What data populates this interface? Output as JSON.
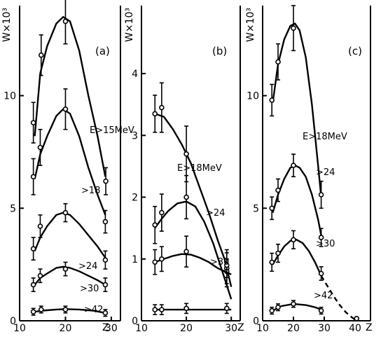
{
  "chart_data": [
    {
      "type": "line",
      "panel_label": "(a)",
      "ylabel": "W×10³",
      "xlabel": "Z",
      "xlim": [
        10,
        32
      ],
      "ylim": [
        0,
        14
      ],
      "xticks": [
        10,
        20,
        30
      ],
      "xtick_labels": [
        "10",
        "20",
        "30"
      ],
      "yticks": [
        0,
        5,
        10
      ],
      "ytick_labels": [
        "0",
        "5",
        "10"
      ],
      "series": [
        {
          "name": "E>15MeV",
          "curve": [
            [
              13.3,
              8.2
            ],
            [
              14.5,
              11.0
            ],
            [
              16,
              12.2
            ],
            [
              18,
              13.2
            ],
            [
              19.5,
              13.5
            ],
            [
              21,
              13.3
            ],
            [
              23,
              12.0
            ],
            [
              25,
              10.0
            ],
            [
              27,
              8.2
            ],
            [
              28.7,
              6.4
            ]
          ],
          "points": [
            {
              "x": 13,
              "y": 8.8,
              "err": 0.9
            },
            {
              "x": 14.7,
              "y": 11.8,
              "err": 0.9
            },
            {
              "x": 20,
              "y": 13.3,
              "err": 1.0
            },
            {
              "x": 28.8,
              "y": 6.2,
              "err": 0.6
            }
          ]
        },
        {
          "name": ">18",
          "curve": [
            [
              13.3,
              6.3
            ],
            [
              14.5,
              7.4
            ],
            [
              16,
              8.2
            ],
            [
              18,
              9.1
            ],
            [
              19.5,
              9.4
            ],
            [
              21,
              9.2
            ],
            [
              23,
              8.2
            ],
            [
              25,
              6.8
            ],
            [
              27,
              5.6
            ],
            [
              28.7,
              4.7
            ]
          ],
          "points": [
            {
              "x": 13,
              "y": 6.4,
              "err": 0.8
            },
            {
              "x": 14.5,
              "y": 7.7,
              "err": 0.8
            },
            {
              "x": 20,
              "y": 9.4,
              "err": 0.9
            },
            {
              "x": 28.7,
              "y": 4.4,
              "err": 0.5
            }
          ]
        },
        {
          "name": ">24",
          "curve": [
            [
              13.3,
              3.1
            ],
            [
              14.5,
              3.7
            ],
            [
              16,
              4.2
            ],
            [
              18,
              4.7
            ],
            [
              19.5,
              4.8
            ],
            [
              21,
              4.7
            ],
            [
              23,
              4.3
            ],
            [
              25,
              3.8
            ],
            [
              27,
              3.3
            ],
            [
              28.7,
              2.8
            ]
          ],
          "points": [
            {
              "x": 13,
              "y": 3.2,
              "err": 0.5
            },
            {
              "x": 14.5,
              "y": 4.2,
              "err": 0.5
            },
            {
              "x": 20,
              "y": 4.8,
              "err": 0.4
            },
            {
              "x": 28.7,
              "y": 2.7,
              "err": 0.4
            }
          ]
        },
        {
          "name": ">30",
          "curve": [
            [
              13.3,
              1.6
            ],
            [
              14.5,
              1.9
            ],
            [
              16,
              2.1
            ],
            [
              18,
              2.35
            ],
            [
              19.5,
              2.4
            ],
            [
              21,
              2.35
            ],
            [
              23,
              2.2
            ],
            [
              25,
              2.0
            ],
            [
              27,
              1.8
            ],
            [
              28.7,
              1.6
            ]
          ],
          "points": [
            {
              "x": 13,
              "y": 1.6,
              "err": 0.3
            },
            {
              "x": 14.5,
              "y": 2.0,
              "err": 0.3
            },
            {
              "x": 20,
              "y": 2.3,
              "err": 0.3
            },
            {
              "x": 28.7,
              "y": 1.6,
              "err": 0.3
            }
          ]
        },
        {
          "name": ">42",
          "curve": [
            [
              13.3,
              0.4
            ],
            [
              15,
              0.45
            ],
            [
              18,
              0.5
            ],
            [
              20,
              0.52
            ],
            [
              23,
              0.5
            ],
            [
              26,
              0.45
            ],
            [
              28.7,
              0.35
            ]
          ],
          "points": [
            {
              "x": 13,
              "y": 0.4,
              "err": 0.15
            },
            {
              "x": 14.7,
              "y": 0.5,
              "err": 0.15
            },
            {
              "x": 20,
              "y": 0.5,
              "err": 0.15
            },
            {
              "x": 28.7,
              "y": 0.35,
              "err": 0.15
            }
          ]
        }
      ]
    },
    {
      "type": "line",
      "panel_label": "(b)",
      "ylabel": "W×10³",
      "xlabel": "Z",
      "xlim": [
        10,
        32
      ],
      "ylim": [
        0,
        5.1
      ],
      "xticks": [
        10,
        20,
        30
      ],
      "xtick_labels": [
        "10",
        "20",
        "30"
      ],
      "yticks": [
        0,
        1,
        2,
        3,
        4
      ],
      "ytick_labels": [
        "0",
        "1",
        "2",
        "3",
        "4"
      ],
      "series": [
        {
          "name": "E>18MeV",
          "curve": [
            [
              13,
              3.35
            ],
            [
              15,
              3.3
            ],
            [
              17,
              3.1
            ],
            [
              19,
              2.85
            ],
            [
              21,
              2.55
            ],
            [
              23,
              2.15
            ],
            [
              25,
              1.75
            ],
            [
              27,
              1.3
            ],
            [
              28.5,
              1.0
            ],
            [
              30,
              0.55
            ]
          ],
          "points": [
            {
              "x": 13,
              "y": 3.35,
              "err": 0.3
            },
            {
              "x": 14.5,
              "y": 3.45,
              "err": 0.4
            },
            {
              "x": 20,
              "y": 2.7,
              "err": 0.45
            },
            {
              "x": 29,
              "y": 0.85,
              "err": 0.3
            }
          ]
        },
        {
          "name": ">24",
          "curve": [
            [
              13,
              1.5
            ],
            [
              14.5,
              1.65
            ],
            [
              16,
              1.78
            ],
            [
              18,
              1.9
            ],
            [
              20,
              1.93
            ],
            [
              22,
              1.85
            ],
            [
              24,
              1.6
            ],
            [
              26,
              1.25
            ],
            [
              28,
              0.8
            ],
            [
              30,
              0.35
            ]
          ],
          "points": [
            {
              "x": 13,
              "y": 1.55,
              "err": 0.3
            },
            {
              "x": 14.5,
              "y": 1.75,
              "err": 0.3
            },
            {
              "x": 20,
              "y": 2.0,
              "err": 0.35
            },
            {
              "x": 29,
              "y": 0.8,
              "err": 0.2
            }
          ]
        },
        {
          "name": ">30",
          "curve": [
            [
              13,
              0.95
            ],
            [
              15,
              1.0
            ],
            [
              17,
              1.05
            ],
            [
              19,
              1.08
            ],
            [
              21,
              1.07
            ],
            [
              23,
              1.02
            ],
            [
              25,
              0.95
            ],
            [
              27,
              0.85
            ],
            [
              28.5,
              0.8
            ],
            [
              30,
              0.75
            ]
          ],
          "points": [
            {
              "x": 13,
              "y": 0.95,
              "err": 0.2
            },
            {
              "x": 14.5,
              "y": 1.0,
              "err": 0.2
            },
            {
              "x": 20,
              "y": 1.12,
              "err": 0.25
            },
            {
              "x": 29,
              "y": 0.9,
              "err": 0.2
            }
          ]
        },
        {
          "name": ">42",
          "curve": [
            [
              13,
              0.18
            ],
            [
              18,
              0.18
            ],
            [
              23,
              0.18
            ],
            [
              28,
              0.18
            ],
            [
              30,
              0.18
            ]
          ],
          "points": [
            {
              "x": 13,
              "y": 0.18,
              "err": 0.08
            },
            {
              "x": 14.5,
              "y": 0.18,
              "err": 0.08
            },
            {
              "x": 20,
              "y": 0.2,
              "err": 0.08
            },
            {
              "x": 29,
              "y": 0.2,
              "err": 0.08
            }
          ]
        }
      ]
    },
    {
      "type": "line",
      "panel_label": "(c)",
      "ylabel": "W×10³",
      "xlabel": "Z",
      "xlim": [
        10,
        45
      ],
      "ylim": [
        0,
        14
      ],
      "xticks": [
        10,
        20,
        30,
        40
      ],
      "xtick_labels": [
        "10",
        "20",
        "30",
        "40"
      ],
      "yticks": [
        0,
        5,
        10
      ],
      "ytick_labels": [
        "0",
        "5",
        "10"
      ],
      "series": [
        {
          "name": "E>18MeV",
          "curve": [
            [
              13.3,
              9.7
            ],
            [
              15,
              11.4
            ],
            [
              17,
              12.5
            ],
            [
              19,
              13.1
            ],
            [
              20.5,
              13.2
            ],
            [
              22,
              12.9
            ],
            [
              24,
              11.7
            ],
            [
              26,
              9.6
            ],
            [
              28,
              6.9
            ],
            [
              29,
              5.5
            ]
          ],
          "points": [
            {
              "x": 13,
              "y": 9.8,
              "err": 0.7
            },
            {
              "x": 15,
              "y": 11.5,
              "err": 0.8
            },
            {
              "x": 20,
              "y": 13.0,
              "err": 1.0
            },
            {
              "x": 29,
              "y": 5.6,
              "err": 0.6
            }
          ]
        },
        {
          "name": ">24",
          "curve": [
            [
              13.3,
              4.8
            ],
            [
              15,
              5.6
            ],
            [
              17,
              6.3
            ],
            [
              19,
              6.8
            ],
            [
              20.5,
              6.9
            ],
            [
              22,
              6.8
            ],
            [
              24,
              6.4
            ],
            [
              26,
              5.6
            ],
            [
              28,
              4.5
            ],
            [
              29,
              3.8
            ]
          ],
          "points": [
            {
              "x": 13,
              "y": 5.0,
              "err": 0.5
            },
            {
              "x": 15,
              "y": 5.8,
              "err": 0.5
            },
            {
              "x": 20,
              "y": 6.9,
              "err": 0.5
            },
            {
              "x": 29,
              "y": 3.7,
              "err": 0.4
            }
          ]
        },
        {
          "name": ">30",
          "curve": [
            [
              13.3,
              2.5
            ],
            [
              15,
              2.9
            ],
            [
              17,
              3.3
            ],
            [
              19,
              3.55
            ],
            [
              21,
              3.6
            ],
            [
              23,
              3.45
            ],
            [
              25,
              3.1
            ],
            [
              27,
              2.6
            ],
            [
              29,
              2.0
            ]
          ],
          "points": [
            {
              "x": 13,
              "y": 2.6,
              "err": 0.4
            },
            {
              "x": 15,
              "y": 3.0,
              "err": 0.4
            },
            {
              "x": 20,
              "y": 3.6,
              "err": 0.4
            },
            {
              "x": 29,
              "y": 2.1,
              "err": 0.3
            }
          ]
        },
        {
          "name": "dashed extrapolation",
          "dashed": true,
          "curve": [
            [
              29,
              2.0
            ],
            [
              31,
              1.55
            ],
            [
              33,
              1.1
            ],
            [
              35,
              0.7
            ],
            [
              37,
              0.38
            ],
            [
              39,
              0.15
            ],
            [
              40,
              0.05
            ]
          ],
          "points": []
        },
        {
          "name": ">42",
          "curve": [
            [
              13.3,
              0.45
            ],
            [
              16,
              0.65
            ],
            [
              20,
              0.75
            ],
            [
              24,
              0.7
            ],
            [
              27,
              0.6
            ],
            [
              29,
              0.5
            ]
          ],
          "points": [
            {
              "x": 13,
              "y": 0.45,
              "err": 0.15
            },
            {
              "x": 15,
              "y": 0.6,
              "err": 0.15
            },
            {
              "x": 20,
              "y": 0.75,
              "err": 0.15
            },
            {
              "x": 29,
              "y": 0.45,
              "err": 0.15
            },
            {
              "x": 40.5,
              "y": 0.1,
              "err": 0.05
            }
          ]
        }
      ]
    }
  ]
}
